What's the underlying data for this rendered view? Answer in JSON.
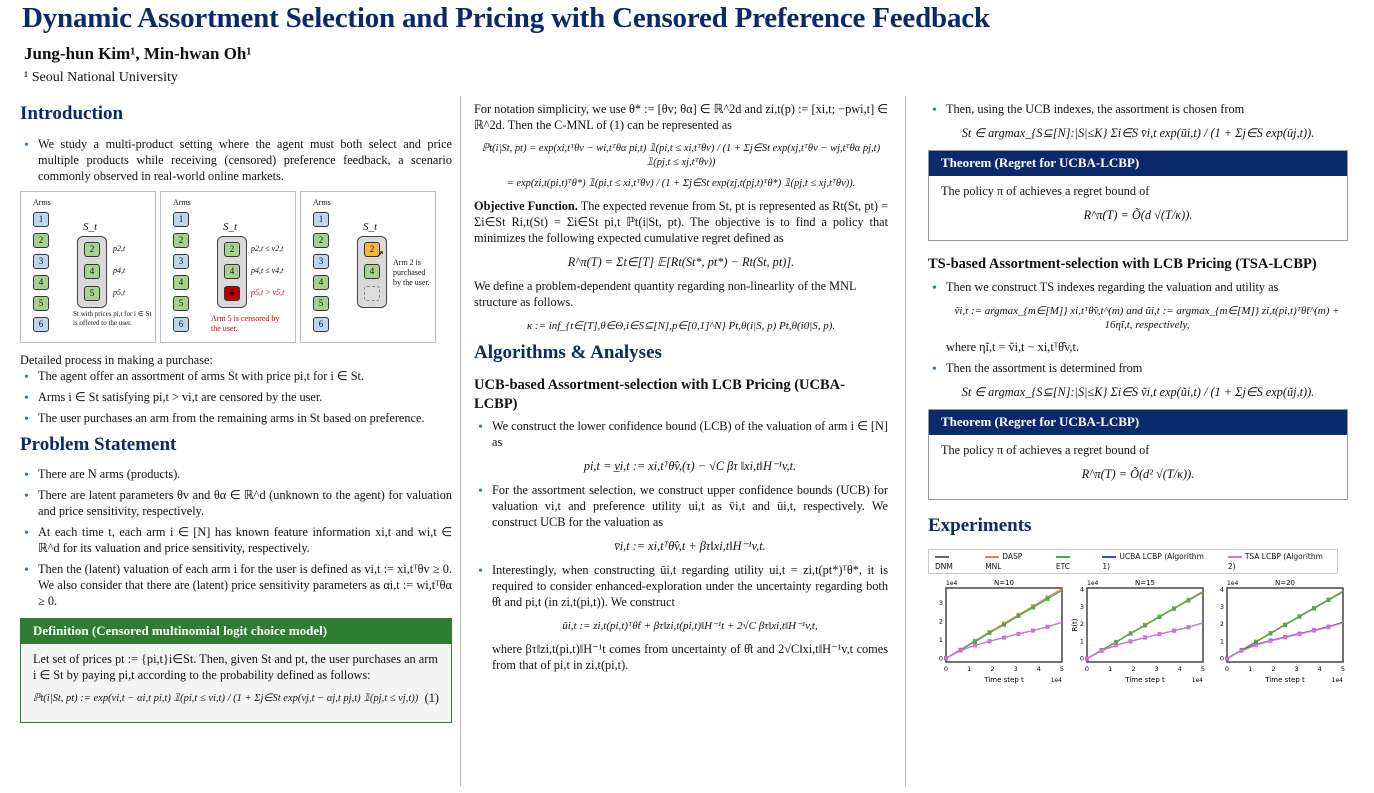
{
  "title": "Dynamic Assortment Selection and Pricing with Censored Preference Feedback",
  "authors": "Jung-hun Kim¹, Min-hwan Oh¹",
  "affiliation": "¹ Seoul National University",
  "intro": {
    "heading": "Introduction",
    "bullet1": "We study a multi-product setting where the agent must both select and price multiple products while receiving (censored) preference feedback, a scenario commonly observed in real-world online markets.",
    "figure": {
      "arms_label": "Arms",
      "set_label": "S_t",
      "arms": [
        "1",
        "2",
        "3",
        "4",
        "5",
        "6"
      ],
      "panel1_prices": [
        "p2,t",
        "p4,t",
        "p5,t"
      ],
      "panel1_caption": "St with prices pi,t for i ∈ St is offered to the user.",
      "panel2_conds": [
        "p2,t ≤ v2,t",
        "p4,t ≤ v4,t",
        "p5,t > v5,t"
      ],
      "panel2_caption": "Arm 5 is censored by the user.",
      "panel3_caption": "Arm 2 is purchased by the user.",
      "set_items": [
        "2",
        "4",
        "5"
      ]
    },
    "process_label": "Detailed process in making a purchase:",
    "process": [
      "The agent offer an assortment of arms St with price pi,t for i ∈ St.",
      "Arms i ∈ St satisfying pi,t > vi,t are censored by the user.",
      "The user purchases an arm from the remaining arms in St based on preference."
    ]
  },
  "problem": {
    "heading": "Problem Statement",
    "bullets": [
      "There are N arms (products).",
      "There are latent parameters θv and θα ∈ ℝ^d (unknown to the agent) for valuation and price sensitivity, respectively.",
      "At each time t, each arm i ∈ [N] has known feature information xi,t and wi,t ∈ ℝ^d for its valuation and price sensitivity, respectively.",
      "Then the (latent) valuation of each arm i for the user is defined as vi,t := xi,tᵀθv ≥ 0. We also consider that there are (latent) price sensitivity parameters as αi,t := wi,tᵀθα ≥ 0."
    ],
    "def_title": "Definition (Censored multinomial logit choice model)",
    "def_text": "Let set of prices pt := {pi,t}i∈St. Then, given St and pt, the user purchases an arm i ∈ St by paying pi,t according to the probability defined as follows:",
    "def_eq": "ℙt(i|St, pt) := exp(vi,t − αi,t pi,t) 𝟙(pi,t ≤ vi,t) / (1 + Σj∈St exp(vj,t − αj,t pj,t) 𝟙(pj,t ≤ vj,t))",
    "def_eq_num": "(1)"
  },
  "col2": {
    "notation": "For notation simplicity, we use θ* := [θv; θα] ∈ ℝ^2d and zi,t(p) := [xi,t; −pwi,t] ∈ ℝ^2d. Then the C-MNL of (1) can be represented as",
    "eq1": "ℙt(i|St, pt) = exp(xi,tᵀθv − wi,tᵀθα pi,t) 𝟙(pi,t ≤ xi,tᵀθv) / (1 + Σj∈St exp(xj,tᵀθv − wj,tᵀθα pj,t) 𝟙(pj,t ≤ xj,tᵀθv))",
    "eq2": "= exp(zi,t(pi,t)ᵀθ*) 𝟙(pi,t ≤ xi,tᵀθv) / (1 + Σj∈St exp(zj,t(pj,t)ᵀθ*) 𝟙(pj,t ≤ xj,tᵀθv)).",
    "objective_label": "Objective Function.",
    "objective": "The expected revenue from St, pt is represented as Rt(St, pt) = Σi∈St Ri,t(St) = Σi∈St pi,t ℙt(i|St, pt). The objective is to find a policy that minimizes the following expected cumulative regret defined as",
    "regret_eq": "R^π(T) = Σt∈[T] 𝔼[Rt(St*, pt*) − Rt(St, pt)].",
    "kappa_text": "We define a problem-dependent quantity regarding non-linearlity of the MNL structure as follows.",
    "kappa_eq": "κ := inf_{t∈[T],θ∈Θ,i∈S⊆[N],p∈[0,1]^N} Pt,θ(i|S, p) Pt,θ(i0|S, p).",
    "alg_heading": "Algorithms & Analyses",
    "ucb_heading": "UCB-based Assortment-selection with LCB Pricing (UCBA-LCBP)",
    "b1": "We construct the lower confidence bound (LCB) of the valuation of arm i ∈ [N] as",
    "b1_eq": "pi,t = v̲i,t := xi,tᵀθ̂v,(τ) − √C βτ ‖xi,t‖H⁻¹v,t.",
    "b2": "For the assortment selection, we construct upper confidence bounds (UCB) for valuation vi,t and preference utility ui,t as v̄i,t and ūi,t, respectively. We construct UCB for the valuation as",
    "b2_eq": "v̄i,t := xi,tᵀθ̂v,t + βτ‖xi,t‖H⁻¹v,t.",
    "b3": "Interestingly, when constructing ūi,t regarding utility ui,t = zi,t(pt*)ᵀθ*, it is required to consider enhanced-exploration under the uncertainty regarding both θ̂t and pi,t (in zi,t(pi,t)). We construct",
    "b3_eq": "ūi,t := zi,t(pi,t)ᵀθ̂t + βτ‖zi,t(pi,t)‖H⁻¹t + 2√C βτ‖xi,t‖H⁻¹v,t,",
    "b3_after": "where βτ‖zi,t(pi,t)‖H⁻¹t comes from uncertainty of θ̂t and 2√C‖xi,t‖H⁻¹v,t comes from that of pi,t in zi,t(pi,t)."
  },
  "col3": {
    "b_ucb": "Then, using the UCB indexes, the assortment is chosen from",
    "ucb_eq": "St ∈ argmax_{S⊆[N]:|S|≤K} Σi∈S v̄i,t exp(ūi,t) / (1 + Σj∈S exp(ūj,t)).",
    "thm1_title": "Theorem (Regret for UCBA-LCBP)",
    "thm1_text": "The policy π of achieves a regret bound of",
    "thm1_eq": "R^π(T) = Õ(d √(T/κ)).",
    "ts_heading": "TS-based Assortment-selection with LCB Pricing (TSA-LCBP)",
    "ts_b1": "Then we construct TS indexes regarding the valuation and utility as",
    "ts_eq": "ṽi,t := argmax_{m∈[M]} xi,tᵀθ̃v,t^(m) and ũi,t := argmax_{m∈[M]} zi,t(pi,t)ᵀθ̃t^(m) + 16η̃i,t, respectively,",
    "ts_where": "where η̃i,t = ṽi,t − xi,tᵀθ̂v,t.",
    "ts_b2": "Then the assortment is determined from",
    "ts_eq2": "St ∈ argmax_{S⊆[N]:|S|≤K} Σi∈S ṽi,t exp(ũi,t) / (1 + Σj∈S exp(ũj,t)).",
    "thm2_title": "Theorem (Regret for UCBA-LCBP)",
    "thm2_text": "The policy π of achieves a regret bound of",
    "thm2_eq": "R^π(T) = Õ(d² √(T/κ)).",
    "exp_heading": "Experiments"
  },
  "chart_data": [
    {
      "type": "line",
      "title": "N=10",
      "xlabel": "Time step t",
      "ylabel": "",
      "x_scale_label": "1e4",
      "y_scale_label": "1e4",
      "xlim": [
        0,
        5
      ],
      "ylim": [
        -0.2,
        3.8
      ],
      "xticks": [
        "0",
        "1",
        "2",
        "3",
        "4",
        "5"
      ],
      "yticks": [
        "0",
        "1",
        "2",
        "3"
      ],
      "x": [
        0,
        0.625,
        1.25,
        1.875,
        2.5,
        3.125,
        3.75,
        4.375
      ],
      "series": [
        {
          "name": "DNM",
          "color": "#666666",
          "values": [
            0,
            0.45,
            0.9,
            1.38,
            1.82,
            2.3,
            2.75,
            3.22
          ]
        },
        {
          "name": "DASP MNL",
          "color": "#f08060",
          "values": [
            0,
            0.47,
            0.95,
            1.42,
            1.88,
            2.35,
            2.82,
            3.3
          ]
        },
        {
          "name": "ETC",
          "color": "#3cb043",
          "values": [
            0,
            0.45,
            0.9,
            1.38,
            1.82,
            2.3,
            2.75,
            3.22
          ]
        },
        {
          "name": "UCBA LCBP (Algorithm 1)",
          "color": "#3050d0",
          "values": [
            0,
            0.42,
            0.7,
            0.92,
            1.12,
            1.32,
            1.5,
            1.7
          ]
        },
        {
          "name": "TSA LCBP (Algorithm 2)",
          "color": "#e070e0",
          "values": [
            0,
            0.42,
            0.7,
            0.92,
            1.12,
            1.32,
            1.5,
            1.7
          ]
        }
      ]
    },
    {
      "type": "line",
      "title": "N=15",
      "xlabel": "Time step t",
      "ylabel": "R(t)",
      "x_scale_label": "1e4",
      "y_scale_label": "1e4",
      "xlim": [
        0,
        5
      ],
      "ylim": [
        -0.2,
        4.1
      ],
      "xticks": [
        "0",
        "1",
        "2",
        "3",
        "4",
        "5"
      ],
      "yticks": [
        "0",
        "1",
        "2",
        "3",
        "4"
      ],
      "x": [
        0,
        0.625,
        1.25,
        1.875,
        2.5,
        3.125,
        3.75,
        4.375
      ],
      "series": [
        {
          "name": "DNM",
          "color": "#666666",
          "values": [
            0,
            0.48,
            0.95,
            1.45,
            1.93,
            2.42,
            2.9,
            3.38
          ]
        },
        {
          "name": "DASP MNL",
          "color": "#f08060",
          "values": [
            0,
            0.5,
            0.98,
            1.48,
            1.96,
            2.45,
            2.93,
            3.42
          ]
        },
        {
          "name": "ETC",
          "color": "#3cb043",
          "values": [
            0,
            0.48,
            0.95,
            1.45,
            1.93,
            2.42,
            2.9,
            3.38
          ]
        },
        {
          "name": "UCBA LCBP (Algorithm 1)",
          "color": "#3050d0",
          "values": [
            0,
            0.45,
            0.78,
            1.0,
            1.22,
            1.42,
            1.62,
            1.82
          ]
        },
        {
          "name": "TSA LCBP (Algorithm 2)",
          "color": "#e070e0",
          "values": [
            0,
            0.45,
            0.78,
            1.0,
            1.22,
            1.42,
            1.62,
            1.82
          ]
        }
      ]
    },
    {
      "type": "line",
      "title": "N=20",
      "xlabel": "Time step t",
      "ylabel": "",
      "x_scale_label": "1e4",
      "y_scale_label": "1e4",
      "xlim": [
        0,
        5
      ],
      "ylim": [
        -0.2,
        4.1
      ],
      "xticks": [
        "0",
        "1",
        "2",
        "3",
        "4",
        "5"
      ],
      "yticks": [
        "0",
        "1",
        "2",
        "3",
        "4"
      ],
      "x": [
        0,
        0.625,
        1.25,
        1.875,
        2.5,
        3.125,
        3.75,
        4.375
      ],
      "series": [
        {
          "name": "DNM",
          "color": "#666666",
          "values": [
            0,
            0.48,
            0.96,
            1.46,
            1.95,
            2.44,
            2.92,
            3.4
          ]
        },
        {
          "name": "DASP MNL",
          "color": "#f08060",
          "values": [
            0,
            0.5,
            0.99,
            1.49,
            1.98,
            2.47,
            2.95,
            3.44
          ]
        },
        {
          "name": "ETC",
          "color": "#3cb043",
          "values": [
            0,
            0.48,
            0.96,
            1.46,
            1.95,
            2.44,
            2.92,
            3.4
          ]
        },
        {
          "name": "UCBA LCBP (Algorithm 1)",
          "color": "#3050d0",
          "values": [
            0,
            0.47,
            0.82,
            1.05,
            1.25,
            1.45,
            1.65,
            1.85
          ]
        },
        {
          "name": "TSA LCBP (Algorithm 2)",
          "color": "#e070e0",
          "values": [
            0,
            0.45,
            0.78,
            1.02,
            1.22,
            1.42,
            1.62,
            1.82
          ]
        }
      ]
    }
  ]
}
